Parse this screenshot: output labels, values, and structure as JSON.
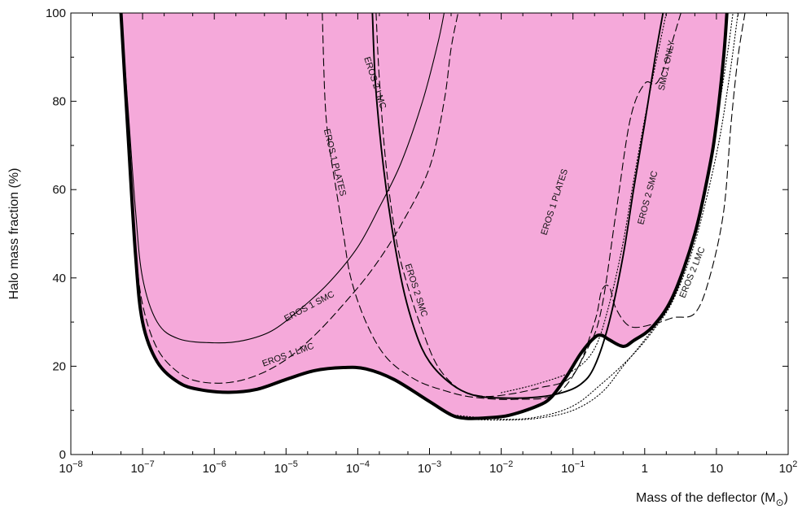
{
  "chart_data": {
    "type": "line",
    "xlabel": "Mass of the deflector (M",
    "xlabel_suffix": "⊙",
    "xlabel_close": ")",
    "ylabel": "Halo mass fraction (%)",
    "x_scale": "log",
    "xlim": [
      1e-08,
      100
    ],
    "ylim": [
      0,
      100
    ],
    "grid": false,
    "legend": "none",
    "x_ticks": [
      {
        "value": 1e-08,
        "base": "10",
        "exp": "−8"
      },
      {
        "value": 1e-07,
        "base": "10",
        "exp": "−7"
      },
      {
        "value": 1e-06,
        "base": "10",
        "exp": "−6"
      },
      {
        "value": 1e-05,
        "base": "10",
        "exp": "−5"
      },
      {
        "value": 0.0001,
        "base": "10",
        "exp": "−4"
      },
      {
        "value": 0.001,
        "base": "10",
        "exp": "−3"
      },
      {
        "value": 0.01,
        "base": "10",
        "exp": "−2"
      },
      {
        "value": 0.1,
        "base": "10",
        "exp": "−1"
      },
      {
        "value": 1,
        "base": "1",
        "exp": ""
      },
      {
        "value": 10,
        "base": "10",
        "exp": ""
      },
      {
        "value": 100,
        "base": "10",
        "exp": "2"
      }
    ],
    "y_ticks": [
      {
        "value": 0,
        "label": "0"
      },
      {
        "value": 20,
        "label": "20"
      },
      {
        "value": 40,
        "label": "40"
      },
      {
        "value": 60,
        "label": "60"
      },
      {
        "value": 80,
        "label": "80"
      },
      {
        "value": 100,
        "label": "100"
      }
    ],
    "fill_color": "#f5a9da",
    "excluded_region": {
      "points": [
        [
          5e-08,
          100
        ],
        [
          6.3e-08,
          72
        ],
        [
          8e-08,
          45
        ],
        [
          1e-07,
          30
        ],
        [
          1.6e-07,
          21
        ],
        [
          3.2e-07,
          16.3
        ],
        [
          6.3e-07,
          14.7
        ],
        [
          1.6e-06,
          14.1
        ],
        [
          4e-06,
          14.8
        ],
        [
          1e-05,
          17
        ],
        [
          2.5e-05,
          19
        ],
        [
          6.3e-05,
          19.7
        ],
        [
          0.00013,
          19.4
        ],
        [
          0.00032,
          17
        ],
        [
          0.001,
          12
        ],
        [
          0.002,
          9
        ],
        [
          0.0032,
          8.2
        ],
        [
          0.0063,
          8.3
        ],
        [
          0.013,
          8.9
        ],
        [
          0.032,
          11
        ],
        [
          0.05,
          13
        ],
        [
          0.08,
          17.5
        ],
        [
          0.13,
          23
        ],
        [
          0.2,
          26.5
        ],
        [
          0.25,
          27
        ],
        [
          0.32,
          26
        ],
        [
          0.5,
          24.5
        ],
        [
          0.7,
          25.8
        ],
        [
          1.3,
          29
        ],
        [
          2.5,
          36
        ],
        [
          5,
          50
        ],
        [
          8,
          65
        ],
        [
          10,
          75
        ],
        [
          12.6,
          90
        ],
        [
          14,
          100
        ]
      ]
    },
    "series": [
      {
        "name": "EROS 1 SMC",
        "style": "solid-thin",
        "points": [
          [
            5e-08,
            100
          ],
          [
            6.3e-08,
            78
          ],
          [
            8e-08,
            55
          ],
          [
            1e-07,
            40
          ],
          [
            1.6e-07,
            30
          ],
          [
            3.2e-07,
            26.2
          ],
          [
            1e-06,
            25.3
          ],
          [
            2.5e-06,
            25.8
          ],
          [
            6.3e-06,
            28
          ],
          [
            1.6e-05,
            33
          ],
          [
            4e-05,
            39
          ],
          [
            0.0001,
            47
          ],
          [
            0.0002,
            56
          ],
          [
            0.0004,
            66
          ],
          [
            0.0008,
            80
          ],
          [
            0.0013,
            93
          ],
          [
            0.0016,
            100
          ]
        ]
      },
      {
        "name": "EROS 1 LMC",
        "style": "dashed",
        "points": [
          [
            5e-08,
            100
          ],
          [
            6.3e-08,
            72
          ],
          [
            8e-08,
            47
          ],
          [
            1e-07,
            34
          ],
          [
            1.6e-07,
            24
          ],
          [
            3.2e-07,
            18.5
          ],
          [
            6.3e-07,
            16.5
          ],
          [
            1.6e-06,
            16.3
          ],
          [
            4e-06,
            18
          ],
          [
            1e-05,
            21.5
          ],
          [
            2.5e-05,
            27
          ],
          [
            6.3e-05,
            34
          ],
          [
            0.00016,
            42
          ],
          [
            0.0004,
            52
          ],
          [
            0.001,
            65
          ],
          [
            0.0016,
            80
          ],
          [
            0.002,
            92
          ],
          [
            0.0025,
            100
          ]
        ]
      },
      {
        "name": "EROS 1 PLATES",
        "style": "dashed",
        "points": [
          [
            3.2e-05,
            100
          ],
          [
            3.5e-05,
            80
          ],
          [
            4e-05,
            70
          ],
          [
            5e-05,
            60
          ],
          [
            6.3e-05,
            50
          ],
          [
            8e-05,
            40
          ],
          [
            0.00013,
            30
          ],
          [
            0.00025,
            22
          ],
          [
            0.00063,
            17
          ],
          [
            0.0016,
            14.5
          ],
          [
            0.004,
            13
          ],
          [
            0.016,
            12.5
          ],
          [
            0.063,
            14
          ],
          [
            0.16,
            24
          ],
          [
            0.25,
            33
          ],
          [
            0.4,
            55
          ],
          [
            0.63,
            76
          ],
          [
            1,
            84
          ],
          [
            1.6,
            85
          ],
          [
            3.2,
            100
          ]
        ]
      },
      {
        "name": "EROS 2 LMC",
        "style": "dashed",
        "points": [
          [
            0.00018,
            100
          ],
          [
            0.0002,
            85
          ],
          [
            0.00025,
            65
          ],
          [
            0.00035,
            48
          ],
          [
            0.0005,
            38
          ],
          [
            0.0008,
            28
          ],
          [
            0.0013,
            20
          ],
          [
            0.0025,
            15
          ],
          [
            0.005,
            13.3
          ],
          [
            0.01,
            13.4
          ],
          [
            0.032,
            15
          ],
          [
            0.1,
            18
          ],
          [
            0.2,
            30
          ],
          [
            0.25,
            37
          ],
          [
            0.32,
            38
          ],
          [
            0.4,
            33
          ],
          [
            0.63,
            29
          ],
          [
            1.3,
            29.5
          ],
          [
            2.5,
            31
          ],
          [
            5,
            32
          ],
          [
            8,
            40
          ],
          [
            12.6,
            55
          ],
          [
            16,
            75
          ],
          [
            20,
            90
          ],
          [
            25,
            100
          ]
        ]
      },
      {
        "name": "EROS 2 SMC",
        "style": "solid-medium",
        "points": [
          [
            0.00016,
            100
          ],
          [
            0.00018,
            82
          ],
          [
            0.00025,
            60
          ],
          [
            0.0004,
            40
          ],
          [
            0.00063,
            28
          ],
          [
            0.001,
            21
          ],
          [
            0.002,
            16
          ],
          [
            0.004,
            13.5
          ],
          [
            0.01,
            12.8
          ],
          [
            0.032,
            13
          ],
          [
            0.07,
            14
          ],
          [
            0.13,
            16
          ],
          [
            0.2,
            20
          ],
          [
            0.32,
            30
          ],
          [
            0.5,
            45
          ],
          [
            0.7,
            60
          ],
          [
            1,
            75
          ],
          [
            1.4,
            90
          ],
          [
            1.8,
            100
          ]
        ]
      },
      {
        "name": "SMC1 ONLY",
        "style": "dotted",
        "points": [
          [
            0.0032,
            8
          ],
          [
            0.01,
            7.8
          ],
          [
            0.032,
            8.2
          ],
          [
            0.1,
            10
          ],
          [
            0.25,
            14
          ],
          [
            0.5,
            20
          ],
          [
            1,
            26
          ],
          [
            2,
            33
          ],
          [
            4,
            45
          ],
          [
            7,
            60
          ],
          [
            10,
            75
          ],
          [
            14,
            90
          ],
          [
            17,
            100
          ]
        ]
      },
      {
        "name": "",
        "style": "dotted",
        "points": [
          [
            0.01,
            14
          ],
          [
            0.032,
            16
          ],
          [
            0.1,
            19
          ],
          [
            0.2,
            24
          ],
          [
            0.32,
            34
          ],
          [
            0.5,
            48
          ],
          [
            0.7,
            62
          ],
          [
            1,
            76
          ],
          [
            1.4,
            88
          ],
          [
            2,
            100
          ]
        ]
      },
      {
        "name": "",
        "style": "dotted",
        "points": [
          [
            0.002,
            9
          ],
          [
            0.01,
            8
          ],
          [
            0.032,
            8.5
          ],
          [
            0.1,
            11
          ],
          [
            0.25,
            16
          ],
          [
            0.63,
            22
          ],
          [
            1.3,
            28
          ],
          [
            2.5,
            35
          ],
          [
            5,
            48
          ],
          [
            10,
            68
          ],
          [
            15,
            85
          ],
          [
            20,
            100
          ]
        ]
      }
    ],
    "annotations": [
      {
        "text": "EROS 1 SMC",
        "x": 2.2e-05,
        "y": 33,
        "angle": -28
      },
      {
        "text": "EROS 1 LMC",
        "x": 1.1e-05,
        "y": 22,
        "angle": -20
      },
      {
        "text": "EROS 1 PLATES",
        "x": 4.4e-05,
        "y": 66,
        "angle": 76
      },
      {
        "text": "EROS 2 LMC",
        "x": 0.00016,
        "y": 84,
        "angle": 72
      },
      {
        "text": "EROS 2 SMC",
        "x": 0.0006,
        "y": 37,
        "angle": 72
      },
      {
        "text": "EROS 1 PLATES",
        "x": 0.06,
        "y": 57,
        "angle": -72
      },
      {
        "text": "EROS 2 SMC",
        "x": 1.2,
        "y": 58,
        "angle": -75
      },
      {
        "text": "SMC1 ONLY",
        "x": 2.2,
        "y": 88,
        "angle": -78
      },
      {
        "text": "EROS 2 LMC",
        "x": 5,
        "y": 41,
        "angle": -68
      }
    ]
  }
}
